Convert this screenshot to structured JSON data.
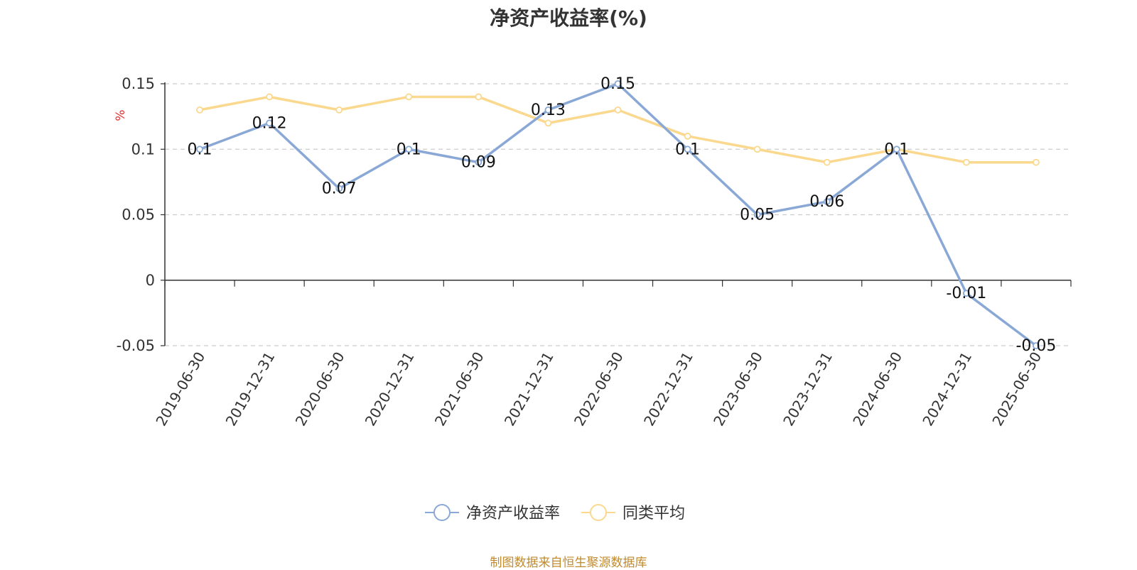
{
  "title": "净资产收益率(%)",
  "source_note": "制图数据来自恒生聚源数据库",
  "chart_data": {
    "type": "line",
    "title": "净资产收益率(%)",
    "ylabel": "%",
    "xlabel": "",
    "categories": [
      "2019-06-30",
      "2019-12-31",
      "2020-06-30",
      "2020-12-31",
      "2021-06-30",
      "2021-12-31",
      "2022-06-30",
      "2022-12-31",
      "2023-06-30",
      "2023-12-31",
      "2024-06-30",
      "2024-12-31",
      "2025-06-30"
    ],
    "ylim": [
      -0.05,
      0.15
    ],
    "yticks": [
      -0.05,
      0,
      0.05,
      0.1,
      0.15
    ],
    "ytick_labels": [
      "-0.05",
      "0",
      "0.05",
      "0.1",
      "0.15"
    ],
    "grid": true,
    "legend_position": "bottom-center",
    "series": [
      {
        "name": "净资产收益率",
        "color": "#8aa8d6",
        "values": [
          0.1,
          0.12,
          0.07,
          0.1,
          0.09,
          0.13,
          0.15,
          0.1,
          0.05,
          0.06,
          0.1,
          -0.01,
          -0.05
        ],
        "labels": [
          "0.1",
          "0.12",
          "0.07",
          "0.1",
          "0.09",
          "0.13",
          "0.15",
          "0.1",
          "0.05",
          "0.06",
          "0.1",
          "-0.01",
          "-0.05"
        ]
      },
      {
        "name": "同类平均",
        "color": "#fad88e",
        "values": [
          0.13,
          0.14,
          0.13,
          0.14,
          0.14,
          0.12,
          0.13,
          0.11,
          0.1,
          0.09,
          0.1,
          0.09,
          0.09
        ]
      }
    ]
  },
  "colors": {
    "axis": "#333333",
    "grid": "#cccccc",
    "ylabel": "#e03030"
  }
}
